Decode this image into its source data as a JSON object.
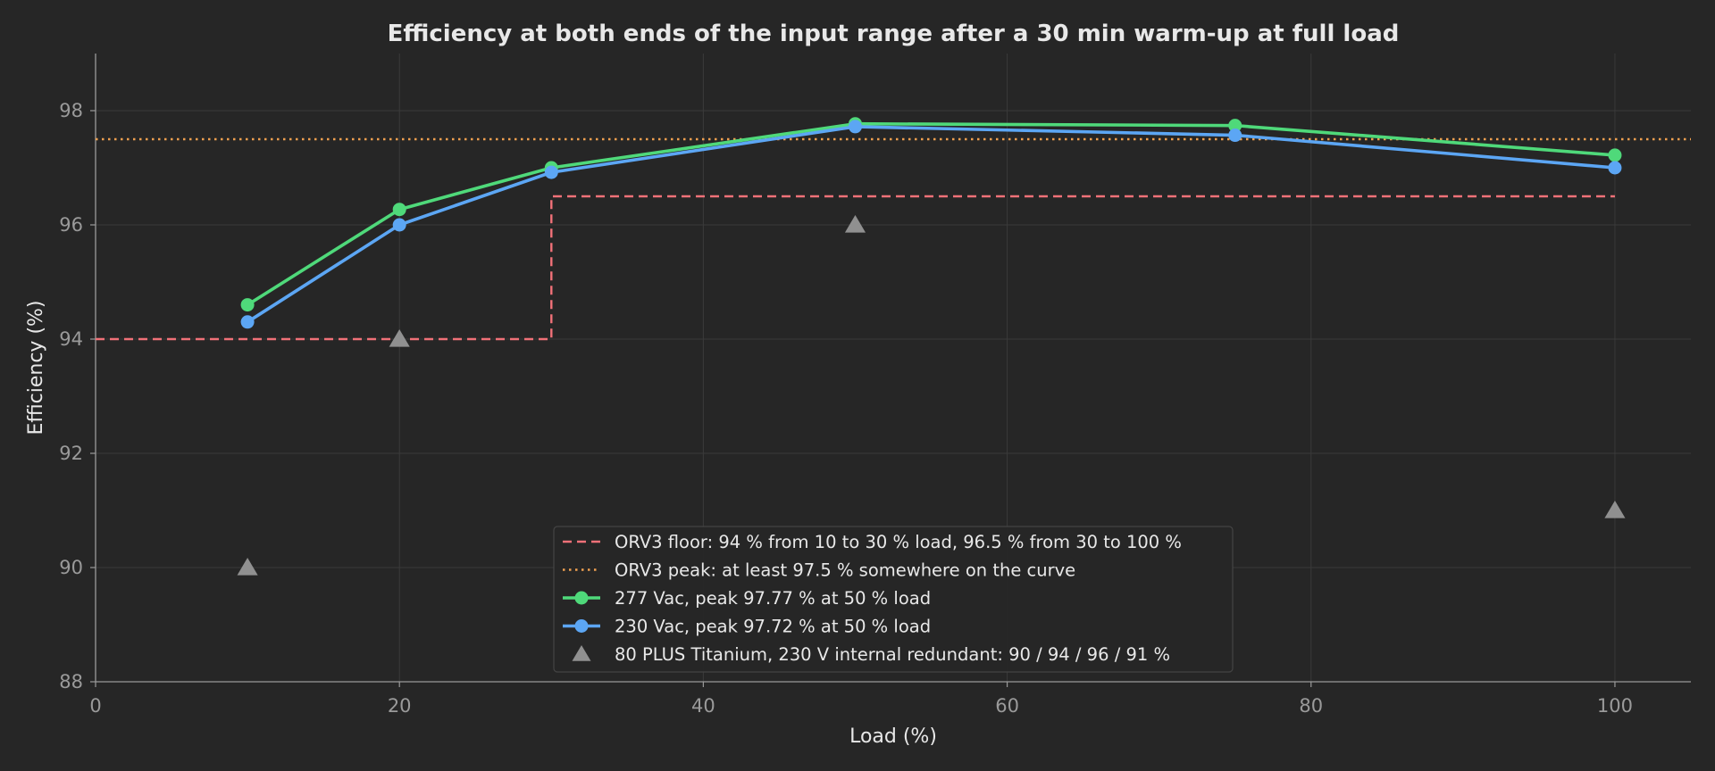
{
  "chart_data": {
    "type": "line",
    "title": "Efficiency at both ends of the input range after a 30 min warm-up at full load",
    "xlabel": "Load (%)",
    "ylabel": "Efficiency (%)",
    "xlim": [
      0,
      105
    ],
    "ylim": [
      88,
      99
    ],
    "x_ticks": [
      "0",
      "20",
      "40",
      "60",
      "80",
      "100"
    ],
    "y_ticks": [
      "88",
      "90",
      "92",
      "94",
      "96",
      "98"
    ],
    "grid": true,
    "legend_position": "lower-center",
    "series": [
      {
        "name": "ORV3 floor: 94 % from 10 to 30 % load, 96.5 % from 30 to 100 %",
        "kind": "step-line",
        "style": "dashed",
        "color": "#f07178",
        "x": [
          0,
          30,
          30,
          100
        ],
        "y": [
          94,
          94,
          96.5,
          96.5
        ]
      },
      {
        "name": "ORV3 peak: at least 97.5 % somewhere on the curve",
        "kind": "hline",
        "style": "dotted",
        "color": "#f0a050",
        "y": 97.5
      },
      {
        "name": "277 Vac, peak 97.77 % at 50 % load",
        "kind": "line-marker",
        "style": "solid",
        "color": "#4fd97a",
        "x": [
          10,
          20,
          30,
          50,
          75,
          100
        ],
        "y": [
          94.6,
          96.27,
          97.0,
          97.77,
          97.74,
          97.22
        ]
      },
      {
        "name": "230 Vac, peak 97.72 % at 50 % load",
        "kind": "line-marker",
        "style": "solid",
        "color": "#5ca6f4",
        "x": [
          10,
          20,
          30,
          50,
          75,
          100
        ],
        "y": [
          94.3,
          96.0,
          96.92,
          97.72,
          97.57,
          97.0
        ]
      },
      {
        "name": "80 PLUS Titanium, 230 V internal redundant: 90 / 94 / 96 / 91 %",
        "kind": "scatter-triangle",
        "color": "#909090",
        "x": [
          10,
          20,
          50,
          100
        ],
        "y": [
          90,
          94,
          96,
          91
        ]
      }
    ]
  },
  "colors": {
    "background": "#262626",
    "grid": "#3a3a3a",
    "axis": "#9a9a9a",
    "legend_bg": "#262626",
    "legend_border": "#444444"
  }
}
